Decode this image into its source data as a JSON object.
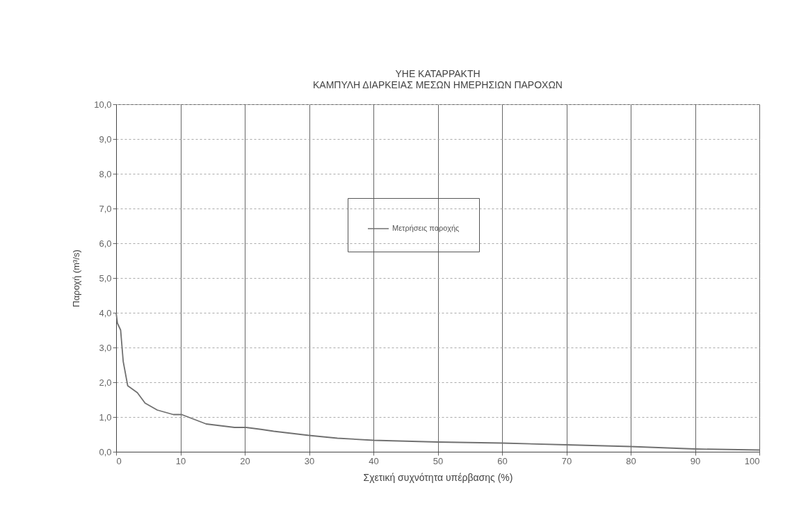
{
  "chart_data": {
    "type": "line",
    "title": "ΥΗΕ ΚΑΤΑΡΡΑΚΤΗ",
    "subtitle": "ΚΑΜΠΥΛΗ ΔΙΑΡΚΕΙΑΣ ΜΕΣΩΝ ΗΜΕΡΗΣΙΩΝ ΠΑΡΟΧΩΝ",
    "xlabel": "Σχετική συχνότητα υπέρβασης (%)",
    "ylabel": "Παροχή (m³/s)",
    "series": [
      {
        "name": "Μετρήσεις παροχής",
        "color": "#707070",
        "x": [
          0,
          0.2,
          0.7,
          1.1,
          1.8,
          3.3,
          4.5,
          6.4,
          8.9,
          10.2,
          14,
          18.4,
          20.2,
          22.7,
          24.5,
          30,
          34.4,
          40,
          50,
          60,
          70,
          80,
          90,
          100
        ],
        "values": [
          4.0,
          3.7,
          3.5,
          2.6,
          1.9,
          1.7,
          1.4,
          1.2,
          1.07,
          1.07,
          0.8,
          0.7,
          0.7,
          0.64,
          0.59,
          0.47,
          0.39,
          0.33,
          0.28,
          0.25,
          0.2,
          0.15,
          0.08,
          0.05
        ]
      }
    ],
    "xlim": [
      0,
      100
    ],
    "xticks": [
      0,
      10,
      20,
      30,
      40,
      50,
      60,
      70,
      80,
      90,
      100
    ],
    "ylim": [
      0,
      10
    ],
    "yticks": [
      {
        "value": 0,
        "label": "0,0"
      },
      {
        "value": 1,
        "label": "1,0"
      },
      {
        "value": 2,
        "label": "2,0"
      },
      {
        "value": 3,
        "label": "3,0"
      },
      {
        "value": 4,
        "label": "4,0"
      },
      {
        "value": 5,
        "label": "5,0"
      },
      {
        "value": 6,
        "label": "6,0"
      },
      {
        "value": 7,
        "label": "7,0"
      },
      {
        "value": 8,
        "label": "8,0"
      },
      {
        "value": 9,
        "label": "9,0"
      },
      {
        "value": 10,
        "label": "10,0"
      }
    ],
    "grid": true,
    "legend": "top",
    "marker": "none",
    "line_style": "solid"
  }
}
